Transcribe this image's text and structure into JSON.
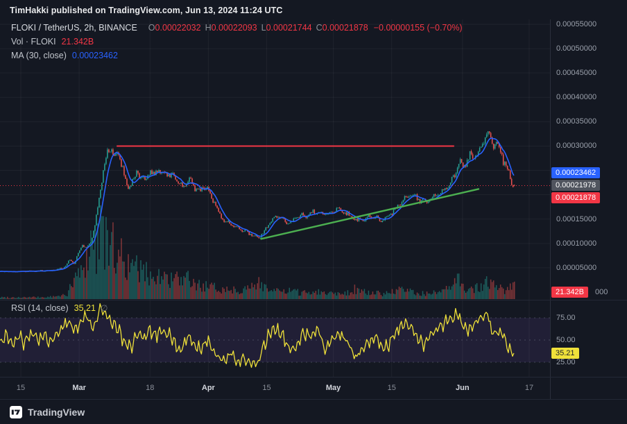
{
  "header": {
    "published_line": "TimHakki published on TradingView.com, Jun 13, 2024 11:24 UTC"
  },
  "legend": {
    "symbol_title": "FLOKI / TetherUS, 2h, BINANCE",
    "ohlc": {
      "o_label": "O",
      "o": "0.00022032",
      "h_label": "H",
      "h": "0.00022093",
      "l_label": "L",
      "l": "0.00021744",
      "c_label": "C",
      "c": "0.00021878",
      "change": "−0.00000155 (−0.70%)"
    },
    "volume_row": {
      "label": "Vol · FLOKI",
      "value": "21.342B"
    },
    "ma_row": {
      "label": "MA (30, close)",
      "value": "0.00023462"
    }
  },
  "rsi": {
    "label": "RSI (14, close)",
    "value": "35.21",
    "disabled_symbol": "∅",
    "levels": [
      {
        "label": "75.00",
        "value": 75
      },
      {
        "label": "50.00",
        "value": 50
      },
      {
        "label": "25.00",
        "value": 25
      }
    ]
  },
  "price_scale": {
    "labels": [
      "0.00055000",
      "0.00050000",
      "0.00045000",
      "0.00040000",
      "0.00035000",
      "0.00030000",
      "0.00015000",
      "0.00010000",
      "0.00005000"
    ],
    "bottom_fragment": "000",
    "badges": {
      "ma": {
        "text": "0.00023462",
        "bg": "#2962ff",
        "fg": "#ffffff"
      },
      "price_line": {
        "text": "0.00021978",
        "bg": "#50545e",
        "fg": "#ffffff"
      },
      "last": {
        "text": "0.00021878",
        "bg": "#f23645",
        "fg": "#ffffff"
      },
      "volume": {
        "text": "21.342B",
        "bg": "#f23645",
        "fg": "#ffffff"
      },
      "rsi": {
        "text": "35.21",
        "bg": "#efe13a",
        "fg": "#1b1f29"
      }
    }
  },
  "time_axis": {
    "ticks": [
      {
        "label": "15",
        "major": false,
        "t": 5
      },
      {
        "label": "Mar",
        "major": true,
        "t": 19
      },
      {
        "label": "18",
        "major": false,
        "t": 36
      },
      {
        "label": "Apr",
        "major": true,
        "t": 50
      },
      {
        "label": "15",
        "major": false,
        "t": 64
      },
      {
        "label": "May",
        "major": true,
        "t": 80
      },
      {
        "label": "15",
        "major": false,
        "t": 94
      },
      {
        "label": "Jun",
        "major": true,
        "t": 111
      },
      {
        "label": "17",
        "major": false,
        "t": 127
      }
    ]
  },
  "footer": {
    "brand": "TradingView"
  },
  "colors": {
    "up": "#26a69a",
    "down": "#ef5350",
    "ma": "#2962ff",
    "rsi": "#efe13a",
    "drawing_red": "#f23645",
    "drawing_green": "#4caf50",
    "badge_gray": "#50545e",
    "background": "#141822"
  },
  "chart_data": {
    "type": "candlestick",
    "title": "FLOKI / TetherUS, 2h, BINANCE",
    "symbol": "FLOKI/TetherUS",
    "exchange": "BINANCE",
    "interval": "2h",
    "last": {
      "open": 0.00022032,
      "high": 0.00022093,
      "low": 0.00021744,
      "close": 0.00021878,
      "change": -1.55e-06,
      "change_pct": -0.7
    },
    "volume_display": "21.342B",
    "ma_period": 30,
    "ma_value": 0.00023462,
    "rsi_period": 14,
    "rsi_value": 35.21,
    "price_axis": {
      "min": 0,
      "max": 0.00055,
      "step": 5e-05
    },
    "days_total": 132,
    "candle_t_end": 123.4,
    "price_path_anchors": [
      [
        0,
        4.2e-05
      ],
      [
        8,
        4.3e-05
      ],
      [
        13,
        4.5e-05
      ],
      [
        15.5,
        5e-05
      ],
      [
        17,
        6.6e-05
      ],
      [
        18,
        5.8e-05
      ],
      [
        19,
        7.8e-05
      ],
      [
        20,
        9.8e-05
      ],
      [
        21,
        9e-05
      ],
      [
        22,
        0.000105
      ],
      [
        23,
        0.000135
      ],
      [
        24,
        0.000195
      ],
      [
        25,
        0.000245
      ],
      [
        26,
        0.000285
      ],
      [
        26.8,
        0.000302
      ],
      [
        27.6,
        0.000272
      ],
      [
        28.4,
        0.000292
      ],
      [
        29.2,
        0.000268
      ],
      [
        30,
        0.00024
      ],
      [
        31,
        0.000216
      ],
      [
        32,
        0.000228
      ],
      [
        33,
        0.000246
      ],
      [
        34,
        0.000238
      ],
      [
        35,
        0.00023
      ],
      [
        36,
        0.000248
      ],
      [
        37,
        0.00024
      ],
      [
        38,
        0.000252
      ],
      [
        39,
        0.000244
      ],
      [
        40,
        0.00025
      ],
      [
        41,
        0.000238
      ],
      [
        42,
        0.000246
      ],
      [
        43,
        0.000226
      ],
      [
        44,
        0.000216
      ],
      [
        45,
        0.000224
      ],
      [
        46,
        0.00023
      ],
      [
        47,
        0.000212
      ],
      [
        48,
        0.000206
      ],
      [
        49,
        0.000216
      ],
      [
        50,
        0.00021
      ],
      [
        51,
        0.000196
      ],
      [
        52,
        0.000178
      ],
      [
        53,
        0.000158
      ],
      [
        54,
        0.000148
      ],
      [
        55.5,
        0.00014
      ],
      [
        57,
        0.000134
      ],
      [
        58.5,
        0.000128
      ],
      [
        60,
        0.000121
      ],
      [
        61,
        0.000116
      ],
      [
        62.5,
        0.000112
      ],
      [
        63.5,
        0.000124
      ],
      [
        65,
        0.000144
      ],
      [
        66.5,
        0.000156
      ],
      [
        68,
        0.00015
      ],
      [
        69.5,
        0.00014
      ],
      [
        71,
        0.00015
      ],
      [
        72.5,
        0.00016
      ],
      [
        74,
        0.000156
      ],
      [
        75.5,
        0.000166
      ],
      [
        77,
        0.000158
      ],
      [
        78.5,
        0.00016
      ],
      [
        80,
        0.000166
      ],
      [
        81.5,
        0.000172
      ],
      [
        83,
        0.000164
      ],
      [
        84.5,
        0.000154
      ],
      [
        86,
        0.000145
      ],
      [
        87.5,
        0.000149
      ],
      [
        89,
        0.000156
      ],
      [
        90.5,
        0.000152
      ],
      [
        92,
        0.000147
      ],
      [
        93.5,
        0.000156
      ],
      [
        95,
        0.00017
      ],
      [
        96.5,
        0.000184
      ],
      [
        98,
        0.000196
      ],
      [
        99.5,
        0.0002
      ],
      [
        101,
        0.000188
      ],
      [
        102.5,
        0.000184
      ],
      [
        104,
        0.000194
      ],
      [
        105.5,
        0.000202
      ],
      [
        107,
        0.000212
      ],
      [
        108.5,
        0.000228
      ],
      [
        109.8,
        0.000252
      ],
      [
        110.6,
        0.000272
      ],
      [
        111.4,
        0.000258
      ],
      [
        112.2,
        0.000266
      ],
      [
        113,
        0.00028
      ],
      [
        113.8,
        0.000272
      ],
      [
        114.6,
        0.000282
      ],
      [
        115.4,
        0.000292
      ],
      [
        116.2,
        0.00031
      ],
      [
        117,
        0.000328
      ],
      [
        117.8,
        0.000316
      ],
      [
        118.6,
        0.000298
      ],
      [
        119.4,
        0.000308
      ],
      [
        120.2,
        0.000294
      ],
      [
        121,
        0.000272
      ],
      [
        121.8,
        0.000254
      ],
      [
        122.6,
        0.000236
      ],
      [
        123.4,
        0.00021878
      ]
    ],
    "volume_anchors": [
      [
        0,
        0.02
      ],
      [
        10,
        0.02
      ],
      [
        14,
        0.03
      ],
      [
        16,
        0.06
      ],
      [
        17.5,
        0.18
      ],
      [
        19,
        0.32
      ],
      [
        20,
        0.28
      ],
      [
        21,
        0.55
      ],
      [
        22,
        0.75
      ],
      [
        23,
        0.5
      ],
      [
        24,
        1.0
      ],
      [
        25,
        0.65
      ],
      [
        26,
        0.55
      ],
      [
        27,
        0.6
      ],
      [
        28,
        0.45
      ],
      [
        29,
        0.5
      ],
      [
        30,
        0.42
      ],
      [
        31,
        0.35
      ],
      [
        32,
        0.3
      ],
      [
        33,
        0.38
      ],
      [
        34,
        0.3
      ],
      [
        35,
        0.28
      ],
      [
        36,
        0.3
      ],
      [
        37,
        0.24
      ],
      [
        38,
        0.28
      ],
      [
        39,
        0.22
      ],
      [
        40,
        0.25
      ],
      [
        41,
        0.2
      ],
      [
        42,
        0.24
      ],
      [
        43,
        0.2
      ],
      [
        44,
        0.18
      ],
      [
        45,
        0.22
      ],
      [
        46,
        0.17
      ],
      [
        47,
        0.15
      ],
      [
        48,
        0.16
      ],
      [
        49,
        0.14
      ],
      [
        50,
        0.13
      ],
      [
        51,
        0.12
      ],
      [
        52,
        0.13
      ],
      [
        53,
        0.11
      ],
      [
        54,
        0.12
      ],
      [
        55,
        0.1
      ],
      [
        56,
        0.11
      ],
      [
        57,
        0.1
      ],
      [
        58,
        0.12
      ],
      [
        59,
        0.1
      ],
      [
        60,
        0.14
      ],
      [
        61,
        0.12
      ],
      [
        62,
        0.22
      ],
      [
        63,
        0.16
      ],
      [
        64,
        0.12
      ],
      [
        65,
        0.1
      ],
      [
        66,
        0.09
      ],
      [
        68,
        0.08
      ],
      [
        70,
        0.09
      ],
      [
        72,
        0.07
      ],
      [
        74,
        0.08
      ],
      [
        76,
        0.09
      ],
      [
        78,
        0.07
      ],
      [
        80,
        0.07
      ],
      [
        82,
        0.08
      ],
      [
        84,
        0.07
      ],
      [
        85,
        0.12
      ],
      [
        86,
        0.09
      ],
      [
        88,
        0.07
      ],
      [
        90,
        0.07
      ],
      [
        92,
        0.06
      ],
      [
        94,
        0.08
      ],
      [
        96,
        0.1
      ],
      [
        98,
        0.09
      ],
      [
        100,
        0.07
      ],
      [
        102,
        0.06
      ],
      [
        104,
        0.07
      ],
      [
        106,
        0.08
      ],
      [
        108,
        0.12
      ],
      [
        109,
        0.18
      ],
      [
        110,
        0.22
      ],
      [
        111,
        0.14
      ],
      [
        112,
        0.12
      ],
      [
        113,
        0.14
      ],
      [
        114,
        0.12
      ],
      [
        115,
        0.13
      ],
      [
        116,
        0.16
      ],
      [
        117,
        0.22
      ],
      [
        118,
        0.16
      ],
      [
        119,
        0.12
      ],
      [
        120,
        0.12
      ],
      [
        121,
        0.1
      ],
      [
        122,
        0.12
      ],
      [
        123.4,
        0.14
      ]
    ],
    "rsi_anchors": [
      [
        0,
        48
      ],
      [
        1.5,
        58
      ],
      [
        3,
        42
      ],
      [
        4.5,
        55
      ],
      [
        6,
        45
      ],
      [
        7.5,
        60
      ],
      [
        9,
        50
      ],
      [
        10.5,
        58
      ],
      [
        12,
        48
      ],
      [
        13.5,
        55
      ],
      [
        15,
        62
      ],
      [
        16.5,
        70
      ],
      [
        18,
        60
      ],
      [
        19.5,
        72
      ],
      [
        21,
        78
      ],
      [
        22.5,
        62
      ],
      [
        24,
        84
      ],
      [
        25.5,
        76
      ],
      [
        27,
        70
      ],
      [
        28.5,
        62
      ],
      [
        30,
        45
      ],
      [
        31.5,
        42
      ],
      [
        33,
        58
      ],
      [
        34.5,
        52
      ],
      [
        36,
        60
      ],
      [
        37.5,
        55
      ],
      [
        39,
        62
      ],
      [
        40.5,
        58
      ],
      [
        42,
        45
      ],
      [
        43.5,
        40
      ],
      [
        45,
        55
      ],
      [
        46.5,
        48
      ],
      [
        48,
        38
      ],
      [
        49.5,
        50
      ],
      [
        51,
        42
      ],
      [
        52.5,
        32
      ],
      [
        54,
        28
      ],
      [
        55.5,
        35
      ],
      [
        57,
        26
      ],
      [
        58.5,
        30
      ],
      [
        60,
        24
      ],
      [
        61.5,
        20
      ],
      [
        63,
        40
      ],
      [
        64.5,
        55
      ],
      [
        66,
        62
      ],
      [
        67.5,
        58
      ],
      [
        69,
        42
      ],
      [
        70.5,
        38
      ],
      [
        72,
        52
      ],
      [
        73.5,
        58
      ],
      [
        75,
        55
      ],
      [
        76.5,
        62
      ],
      [
        78,
        40
      ],
      [
        79.5,
        48
      ],
      [
        81,
        58
      ],
      [
        82.5,
        55
      ],
      [
        84,
        42
      ],
      [
        85.5,
        30
      ],
      [
        87,
        38
      ],
      [
        88.5,
        48
      ],
      [
        90,
        52
      ],
      [
        91.5,
        44
      ],
      [
        93,
        42
      ],
      [
        94.5,
        58
      ],
      [
        96,
        66
      ],
      [
        97.5,
        70
      ],
      [
        99,
        62
      ],
      [
        100.5,
        50
      ],
      [
        102,
        44
      ],
      [
        103.5,
        58
      ],
      [
        105,
        64
      ],
      [
        106.5,
        68
      ],
      [
        108,
        74
      ],
      [
        109.5,
        80
      ],
      [
        111,
        68
      ],
      [
        112.5,
        62
      ],
      [
        114,
        68
      ],
      [
        115.5,
        74
      ],
      [
        117,
        80
      ],
      [
        118,
        62
      ],
      [
        119,
        55
      ],
      [
        120,
        62
      ],
      [
        121,
        52
      ],
      [
        122,
        42
      ],
      [
        123.4,
        35.21
      ]
    ],
    "rsi_band": [
      25,
      75
    ],
    "drawings": {
      "resistance_line": {
        "price": 0.0003,
        "t1": 28,
        "t2": 109,
        "color": "#f23645"
      },
      "support_trendline": {
        "t1": 62.5,
        "p1": 0.000109,
        "t2": 115,
        "p2": 0.000212,
        "color": "#4caf50"
      },
      "last_price_line": {
        "price": 0.00021878,
        "style": "dotted",
        "color": "#f23645"
      }
    }
  }
}
